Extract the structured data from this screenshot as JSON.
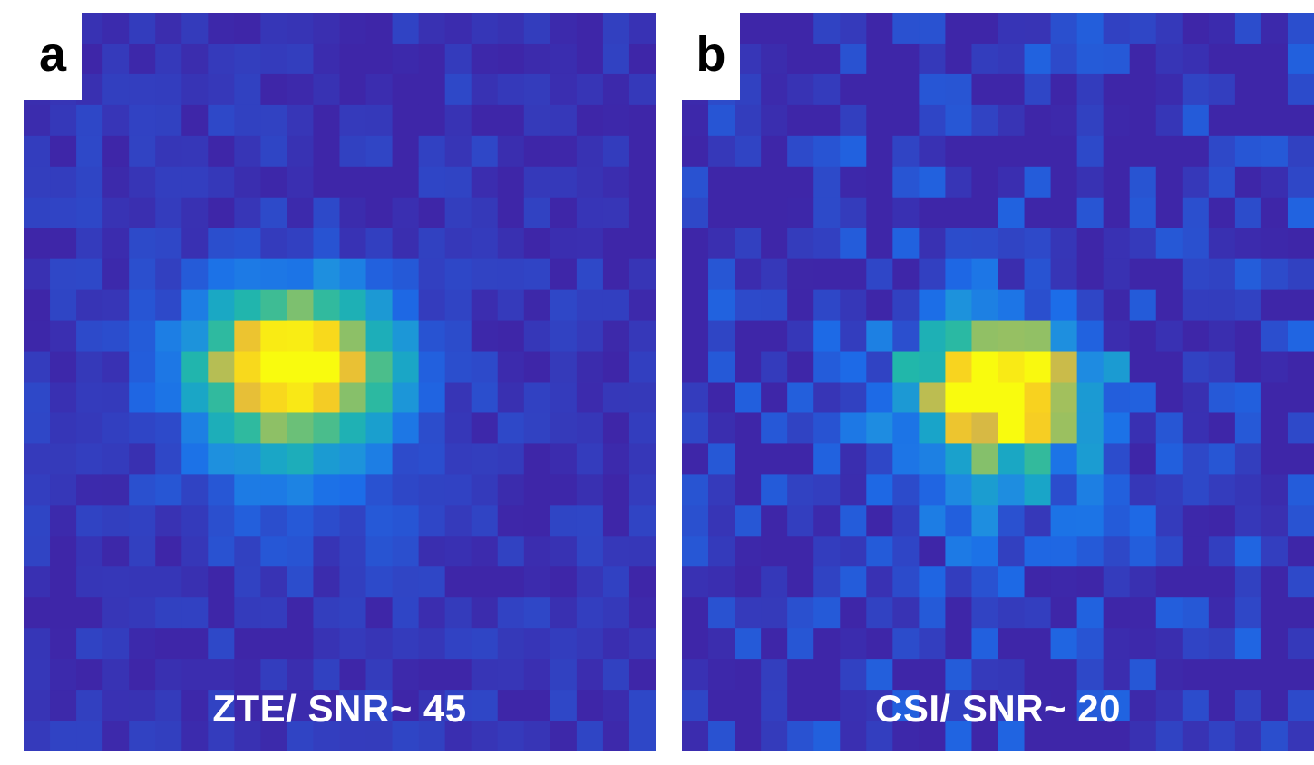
{
  "figure": {
    "panels": [
      {
        "letter": "a",
        "caption": "ZTE/ SNR~ 45",
        "grid": {
          "cols": 24,
          "rows": 24
        },
        "hotspot": {
          "center_col": 9.8,
          "center_row": 10.8,
          "sigma_col": 2.6,
          "sigma_row": 1.6,
          "peak": 1.0,
          "tail_row_shift": 1.3
        },
        "noise_level": 0.06,
        "seed": 17
      },
      {
        "letter": "b",
        "caption": "CSI/ SNR~ 20",
        "grid": {
          "cols": 24,
          "rows": 24
        },
        "hotspot": {
          "center_col": 11.6,
          "center_row": 11.6,
          "sigma_col": 2.4,
          "sigma_row": 1.5,
          "peak": 1.0,
          "tail_row_shift": 1.2
        },
        "noise_level": 0.14,
        "seed": 91
      }
    ],
    "colormap": [
      "#3e26a8",
      "#2e48c8",
      "#1c6ce8",
      "#1e8ee0",
      "#19a5c8",
      "#22b8a8",
      "#5ec07e",
      "#a8c05a",
      "#e0b840",
      "#f8d020",
      "#f9fb0e"
    ]
  }
}
